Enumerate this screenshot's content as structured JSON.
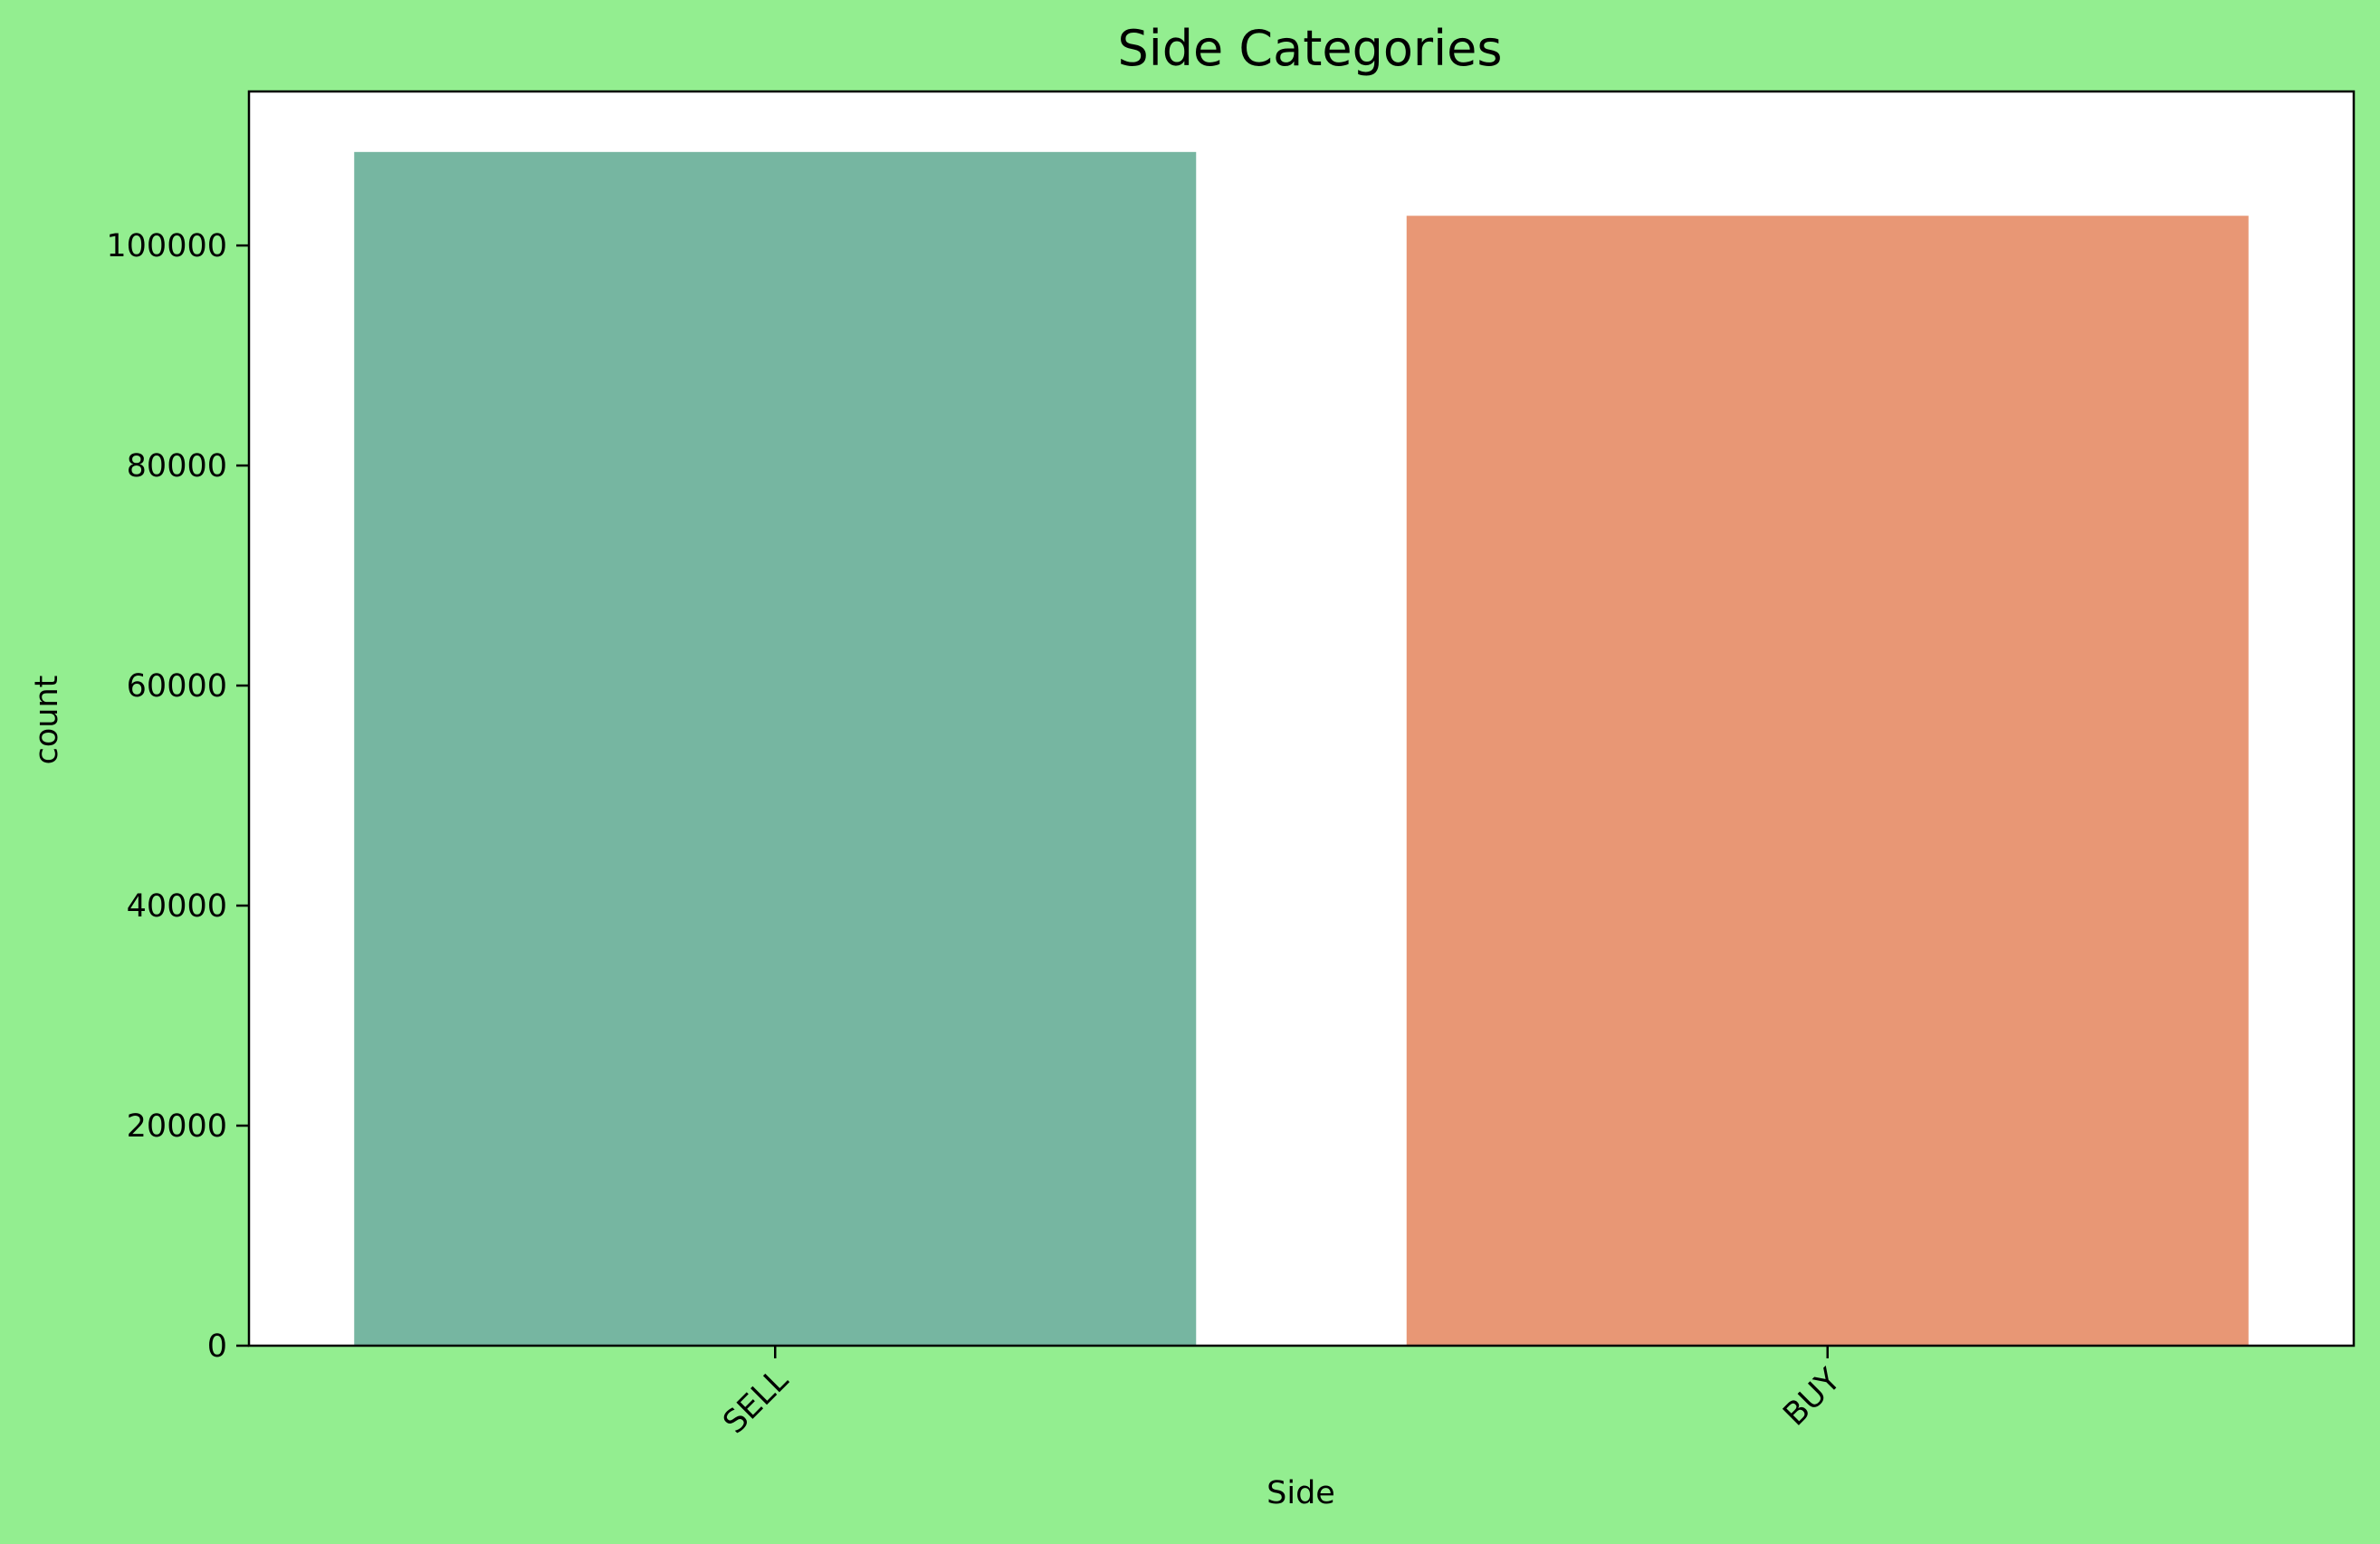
{
  "colors": {
    "figure_background": "#93ee90",
    "plot_background": "#ffffff",
    "axis_line": "#000000"
  },
  "chart_data": {
    "type": "bar",
    "title": "Side Categories",
    "xlabel": "Side",
    "ylabel": "count",
    "categories": [
      "SELL",
      "BUY"
    ],
    "values": [
      108500,
      102700
    ],
    "bar_colors": [
      "#76b6a1",
      "#e89775"
    ],
    "ylim": [
      0,
      114000
    ],
    "yticks": [
      0,
      20000,
      40000,
      60000,
      80000,
      100000
    ],
    "ytick_labels": [
      "0",
      "20000",
      "40000",
      "60000",
      "80000",
      "100000"
    ],
    "xtick_rotation_deg": -45,
    "grid": false,
    "legend": false
  }
}
